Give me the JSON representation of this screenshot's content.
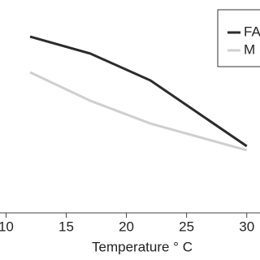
{
  "chart_data": {
    "type": "line",
    "x_label": "Temperature ° C",
    "x": [
      12,
      17,
      22,
      30
    ],
    "series": [
      {
        "name": "FA",
        "color": "#2b2b2b",
        "values": [
          90.4,
          81.7,
          67.9,
          34.2
        ]
      },
      {
        "name": "M",
        "color": "#cfcfcf",
        "values": [
          72.1,
          57.5,
          45.8,
          32.1
        ]
      }
    ],
    "xlim": [
      9.5,
      31.1
    ],
    "xticks": [
      10,
      15,
      20,
      25,
      30
    ],
    "ylim": [
      0,
      100
    ],
    "legend": "upper right"
  }
}
